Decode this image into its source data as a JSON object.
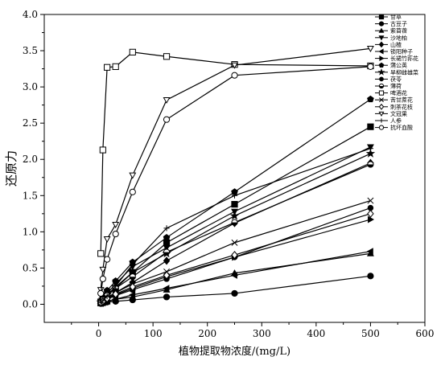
{
  "chart_data": {
    "type": "line",
    "xlabel": "植物提取物浓度/(mg/L)",
    "ylabel": "还原力",
    "xlim": [
      -100,
      600
    ],
    "ylim": [
      -0.25,
      4.0
    ],
    "xticks": [
      0,
      100,
      200,
      300,
      400,
      500,
      600
    ],
    "yticks": [
      0.0,
      0.5,
      1.0,
      1.5,
      2.0,
      2.5,
      3.0,
      3.5,
      4.0
    ],
    "x": [
      3.9,
      7.8,
      15.6,
      31.25,
      62.5,
      125,
      250,
      500
    ],
    "legend_position": "top-right",
    "series": [
      {
        "name": "甘草",
        "marker": "square-filled",
        "values": [
          0.03,
          0.06,
          0.12,
          0.22,
          0.44,
          0.85,
          1.38,
          2.45
        ]
      },
      {
        "name": "古豆子",
        "marker": "circle-filled",
        "values": [
          0.01,
          0.02,
          0.03,
          0.04,
          0.06,
          0.1,
          0.15,
          0.39
        ]
      },
      {
        "name": "紫苜蓿",
        "marker": "triangle-up-filled",
        "values": [
          0.01,
          0.02,
          0.04,
          0.07,
          0.1,
          0.2,
          0.43,
          0.7
        ]
      },
      {
        "name": "沙地柏",
        "marker": "triangle-down-filled",
        "values": [
          0.04,
          0.08,
          0.15,
          0.28,
          0.52,
          0.78,
          1.28,
          2.17
        ]
      },
      {
        "name": "山楂",
        "marker": "diamond-filled",
        "values": [
          0.02,
          0.05,
          0.09,
          0.16,
          0.3,
          0.6,
          1.12,
          1.95
        ]
      },
      {
        "name": "锁阳种子",
        "marker": "triangle-left-filled",
        "values": [
          0.01,
          0.02,
          0.04,
          0.07,
          0.13,
          0.22,
          0.4,
          0.73
        ]
      },
      {
        "name": "长裙竹荪花",
        "marker": "triangle-right-filled",
        "values": [
          0.03,
          0.05,
          0.08,
          0.13,
          0.22,
          0.38,
          0.65,
          1.17
        ]
      },
      {
        "name": "蒲公英",
        "marker": "hexagon-filled",
        "values": [
          0.05,
          0.1,
          0.19,
          0.32,
          0.58,
          0.92,
          1.55,
          2.83
        ]
      },
      {
        "name": "旱柳雌雄菜",
        "marker": "star-filled",
        "values": [
          0.03,
          0.07,
          0.13,
          0.24,
          0.44,
          0.7,
          1.22,
          2.08
        ]
      },
      {
        "name": "茯苓",
        "marker": "circle-small-filled",
        "values": [
          0.02,
          0.04,
          0.07,
          0.12,
          0.2,
          0.35,
          0.65,
          1.33
        ]
      },
      {
        "name": "薄荷",
        "marker": "circle-half",
        "values": [
          0.03,
          0.06,
          0.12,
          0.22,
          0.38,
          0.72,
          1.13,
          1.93
        ]
      },
      {
        "name": "啤酒花",
        "marker": "square-open",
        "values": [
          0.7,
          2.13,
          3.27,
          3.28,
          3.48,
          3.42,
          3.31,
          3.29
        ]
      },
      {
        "name": "苦甘蔗花",
        "marker": "cross",
        "values": [
          0.02,
          0.05,
          0.09,
          0.16,
          0.28,
          0.45,
          0.85,
          1.43
        ]
      },
      {
        "name": "刺茶花枝",
        "marker": "diamond-open",
        "values": [
          0.02,
          0.04,
          0.08,
          0.14,
          0.24,
          0.4,
          0.68,
          1.25
        ]
      },
      {
        "name": "文冠果",
        "marker": "triangle-open",
        "values": [
          0.2,
          0.48,
          0.9,
          1.1,
          1.78,
          2.82,
          3.3,
          3.53
        ]
      },
      {
        "name": "人参",
        "marker": "plus",
        "values": [
          0.02,
          0.05,
          0.11,
          0.25,
          0.55,
          1.05,
          1.5,
          2.15
        ]
      },
      {
        "name": "抗坏血酸",
        "marker": "circle-open",
        "values": [
          0.15,
          0.35,
          0.62,
          0.97,
          1.55,
          2.55,
          3.16,
          3.28
        ]
      }
    ]
  }
}
